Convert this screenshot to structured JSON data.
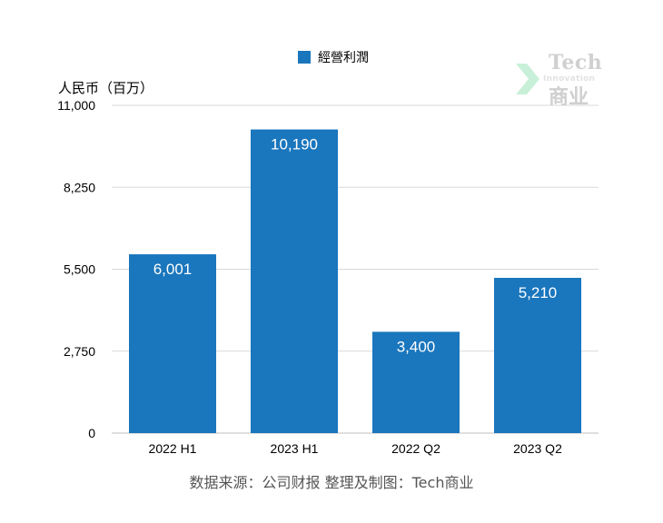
{
  "chart_data": {
    "type": "bar",
    "categories": [
      "2022 H1",
      "2023 H1",
      "2022 Q2",
      "2023 Q2"
    ],
    "series": [
      {
        "name": "經營利潤",
        "values": [
          6001,
          10190,
          3400,
          5210
        ],
        "data_labels": [
          "6,001",
          "10,190",
          "3,400",
          "5,210"
        ],
        "color": "#1a76bd"
      }
    ],
    "ylabel": "人民币（百万）",
    "ylim": [
      0,
      11000
    ],
    "yticks": [
      0,
      2750,
      5500,
      8250,
      11000
    ],
    "ytick_labels": [
      "0",
      "2,750",
      "5,500",
      "8,250",
      "11,000"
    ],
    "grid": true,
    "legend": "top-center",
    "data_label_color": "#ffffff"
  },
  "source": "数据来源：公司财报 整理及制图：Tech商业",
  "watermark": {
    "line1": "Tech",
    "line2": "Innovation",
    "line3": "商业",
    "arrow_color": "#c8f0d8"
  }
}
